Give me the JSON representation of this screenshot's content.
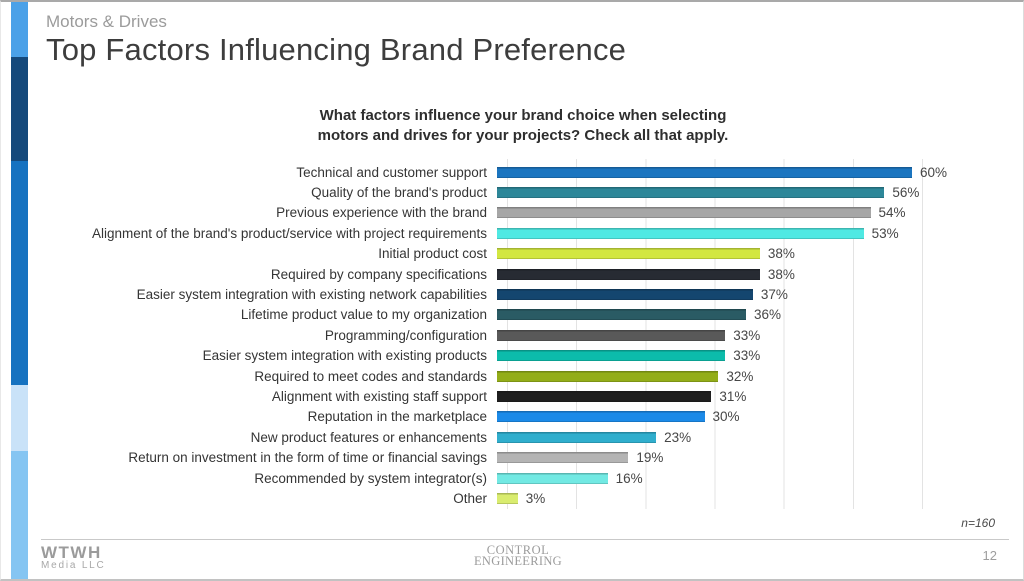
{
  "slide": {
    "eyebrow": "Motors & Drives",
    "title": "Top Factors Influencing Brand Preference",
    "page_number": "12",
    "sample_size": "n=160"
  },
  "question": {
    "line1": "What factors influence your brand choice when selecting",
    "line2": "motors and drives for your projects? Check all that apply."
  },
  "footer": {
    "left_logo": {
      "line1": "WTWH",
      "line2": "Media LLC"
    },
    "center_logo": {
      "line1": "Control",
      "line2": "Engineering"
    }
  },
  "accent_stripe_colors": [
    "#4ba1e8",
    "#15497b",
    "#1672c0",
    "#c9e2f8",
    "#85c5f2"
  ],
  "chart_data": {
    "type": "bar",
    "orientation": "horizontal",
    "title": "What factors influence your brand choice when selecting motors and drives for your projects? Check all that apply.",
    "categories": [
      "Technical and customer support",
      "Quality of the brand's product",
      "Previous experience with the brand",
      "Alignment of the brand's product/service with project requirements",
      "Initial product cost",
      "Required by company specifications",
      "Easier system integration with existing network capabilities",
      "Lifetime product value to my organization",
      "Programming/configuration",
      "Easier system integration with existing products",
      "Required to meet codes and standards",
      "Alignment with existing staff support",
      "Reputation in the marketplace",
      "New product features or enhancements",
      "Return on investment in the form of time or financial savings",
      "Recommended by system integrator(s)",
      "Other"
    ],
    "values": [
      60,
      56,
      54,
      53,
      38,
      38,
      37,
      36,
      33,
      33,
      32,
      31,
      30,
      23,
      19,
      16,
      3
    ],
    "value_suffix": "%",
    "bar_colors": [
      "#1b75c0",
      "#2d8799",
      "#a6a6a6",
      "#4fe9e3",
      "#d2e740",
      "#272b33",
      "#14466f",
      "#2a5b64",
      "#595959",
      "#0cbcab",
      "#93ad19",
      "#1f1f1f",
      "#1b8ae8",
      "#30aecd",
      "#b4b4b4",
      "#72e9e3",
      "#d9ec6f"
    ],
    "xlim": [
      0,
      60
    ],
    "gridline_interval": 10,
    "grid": true,
    "legend": false,
    "annotation": "n=160"
  }
}
